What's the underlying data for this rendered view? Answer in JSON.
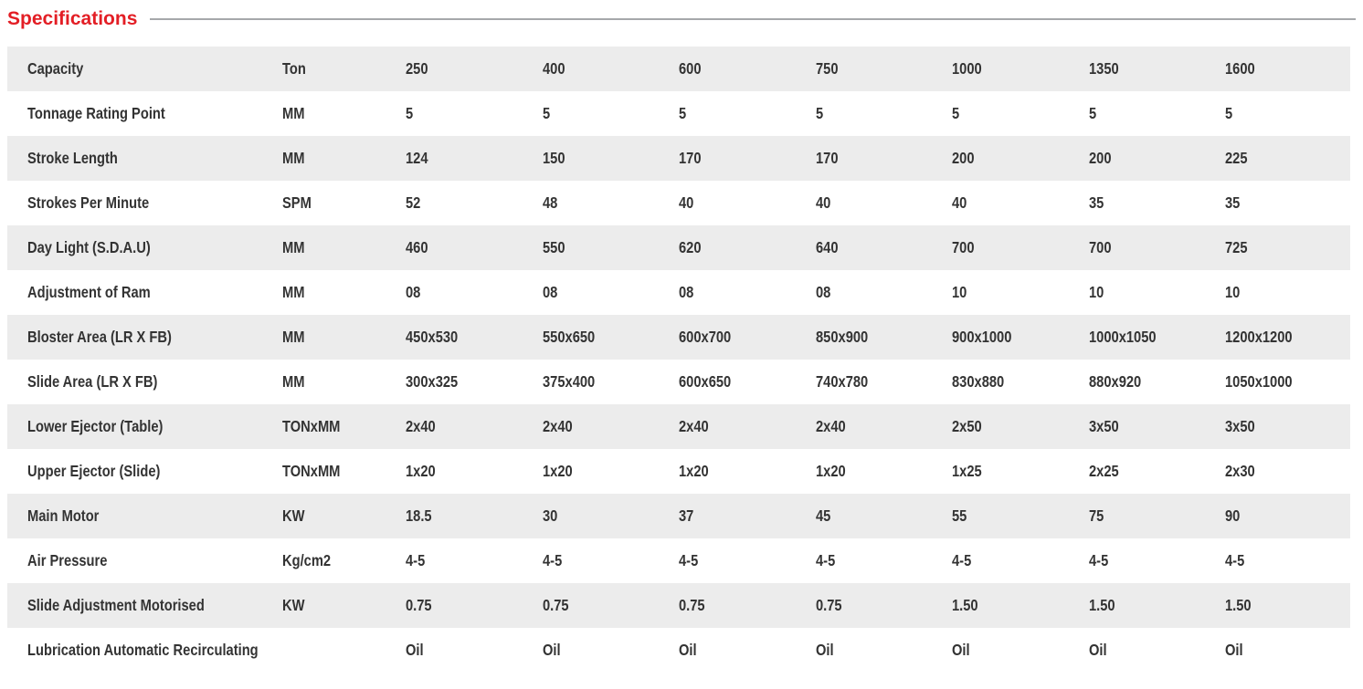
{
  "page": {
    "title": "Specifications"
  },
  "colors": {
    "accent_red": "#e31e25",
    "row_alt_bg": "#ececec",
    "text_dark": "#333333",
    "rule_gray": "#a6a8ab"
  },
  "table": {
    "rows": [
      {
        "param": "Capacity",
        "unit": "Ton",
        "values": [
          "250",
          "400",
          "600",
          "750",
          "1000",
          "1350",
          "1600"
        ]
      },
      {
        "param": "Tonnage Rating Point",
        "unit": "MM",
        "values": [
          "5",
          "5",
          "5",
          "5",
          "5",
          "5",
          "5"
        ]
      },
      {
        "param": "Stroke Length",
        "unit": "MM",
        "values": [
          "124",
          "150",
          "170",
          "170",
          "200",
          "200",
          "225"
        ]
      },
      {
        "param": "Strokes Per Minute",
        "unit": "SPM",
        "values": [
          "52",
          "48",
          "40",
          "40",
          "40",
          "35",
          "35"
        ]
      },
      {
        "param": "Day Light (S.D.A.U)",
        "unit": "MM",
        "values": [
          "460",
          "550",
          "620",
          "640",
          "700",
          "700",
          "725"
        ]
      },
      {
        "param": "Adjustment of Ram",
        "unit": "MM",
        "values": [
          "08",
          "08",
          "08",
          "08",
          "10",
          "10",
          "10"
        ]
      },
      {
        "param": "Bloster Area (LR X FB)",
        "unit": "MM",
        "values": [
          "450x530",
          "550x650",
          "600x700",
          "850x900",
          "900x1000",
          "1000x1050",
          "1200x1200"
        ]
      },
      {
        "param": "Slide Area (LR X FB)",
        "unit": "MM",
        "values": [
          "300x325",
          "375x400",
          "600x650",
          "740x780",
          "830x880",
          "880x920",
          "1050x1000"
        ]
      },
      {
        "param": "Lower Ejector (Table)",
        "unit": "TONxMM",
        "values": [
          "2x40",
          "2x40",
          "2x40",
          "2x40",
          "2x50",
          "3x50",
          "3x50"
        ]
      },
      {
        "param": "Upper Ejector (Slide)",
        "unit": "TONxMM",
        "values": [
          "1x20",
          "1x20",
          "1x20",
          "1x20",
          "1x25",
          "2x25",
          "2x30"
        ]
      },
      {
        "param": "Main Motor",
        "unit": "KW",
        "values": [
          "18.5",
          "30",
          "37",
          "45",
          "55",
          "75",
          "90"
        ]
      },
      {
        "param": "Air Pressure",
        "unit": "Kg/cm2",
        "values": [
          "4-5",
          "4-5",
          "4-5",
          "4-5",
          "4-5",
          "4-5",
          "4-5"
        ]
      },
      {
        "param": "Slide Adjustment Motorised",
        "unit": "KW",
        "values": [
          "0.75",
          "0.75",
          "0.75",
          "0.75",
          "1.50",
          "1.50",
          "1.50"
        ]
      },
      {
        "param": "Lubrication Automatic Recirculating",
        "unit": "",
        "values": [
          "Oil",
          "Oil",
          "Oil",
          "Oil",
          "Oil",
          "Oil",
          "Oil"
        ]
      }
    ]
  }
}
